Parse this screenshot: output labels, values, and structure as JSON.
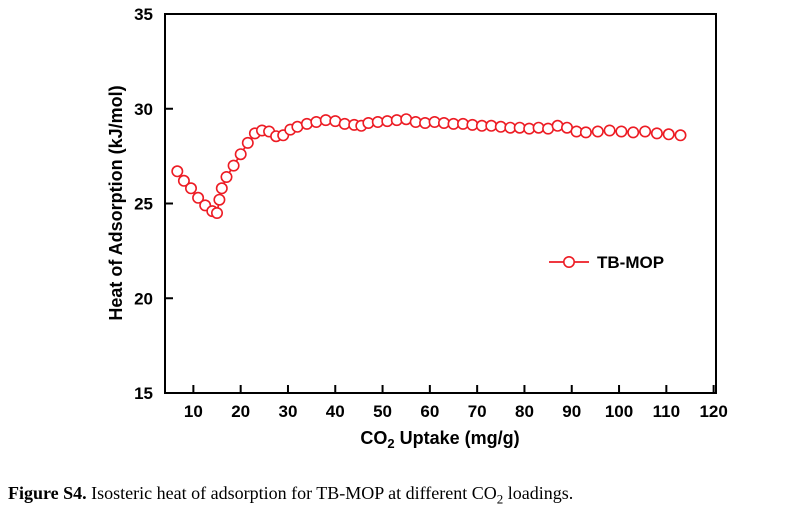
{
  "page": {
    "background": "#ffffff"
  },
  "figure_caption": {
    "label": "Figure S4.",
    "text_before_sub": " Isosteric heat of adsorption for TB-MOP at different CO",
    "sub": "2",
    "text_after_sub": " loadings."
  },
  "chart_data": {
    "type": "line",
    "title": "",
    "series": [
      {
        "name": "TB-MOP",
        "marker": "open-circle",
        "color": "#ed1c24"
      }
    ],
    "xlabel_prefix": "CO",
    "xlabel_sub": "2",
    "xlabel_suffix": " Uptake (mg/g)",
    "ylabel": "Heat of Adsorption (kJ/mol)",
    "xlim": [
      4,
      120.5
    ],
    "ylim": [
      15,
      35
    ],
    "xticks": [
      10,
      20,
      30,
      40,
      50,
      60,
      70,
      80,
      90,
      100,
      110,
      120
    ],
    "yticks": [
      15,
      20,
      25,
      30,
      35
    ],
    "grid": false,
    "legend": {
      "label": "TB-MOP",
      "position": "center-right"
    },
    "color": "#ed1c24",
    "x": [
      6.6,
      8,
      9.5,
      11,
      12.5,
      14,
      15,
      15.5,
      16,
      17,
      18.5,
      20,
      21.5,
      23,
      24.5,
      26,
      27.5,
      29,
      30.5,
      32,
      34,
      36,
      38,
      40,
      42,
      44,
      45.5,
      47,
      49,
      51,
      53,
      55,
      57,
      59,
      61,
      63,
      65,
      67,
      69,
      71,
      73,
      75,
      77,
      79,
      81,
      83,
      85,
      87,
      89,
      91,
      93,
      95.5,
      98,
      100.5,
      103,
      105.5,
      108,
      110.5,
      113
    ],
    "y": [
      26.7,
      26.2,
      25.8,
      25.3,
      24.9,
      24.6,
      24.5,
      25.2,
      25.8,
      26.4,
      27.0,
      27.6,
      28.2,
      28.7,
      28.85,
      28.8,
      28.55,
      28.6,
      28.9,
      29.05,
      29.2,
      29.3,
      29.4,
      29.35,
      29.2,
      29.15,
      29.1,
      29.25,
      29.3,
      29.35,
      29.4,
      29.45,
      29.3,
      29.25,
      29.3,
      29.25,
      29.2,
      29.2,
      29.15,
      29.1,
      29.1,
      29.05,
      29.0,
      29.0,
      28.95,
      29.0,
      28.95,
      29.1,
      29.0,
      28.8,
      28.75,
      28.8,
      28.85,
      28.8,
      28.75,
      28.8,
      28.7,
      28.65,
      28.6
    ]
  }
}
